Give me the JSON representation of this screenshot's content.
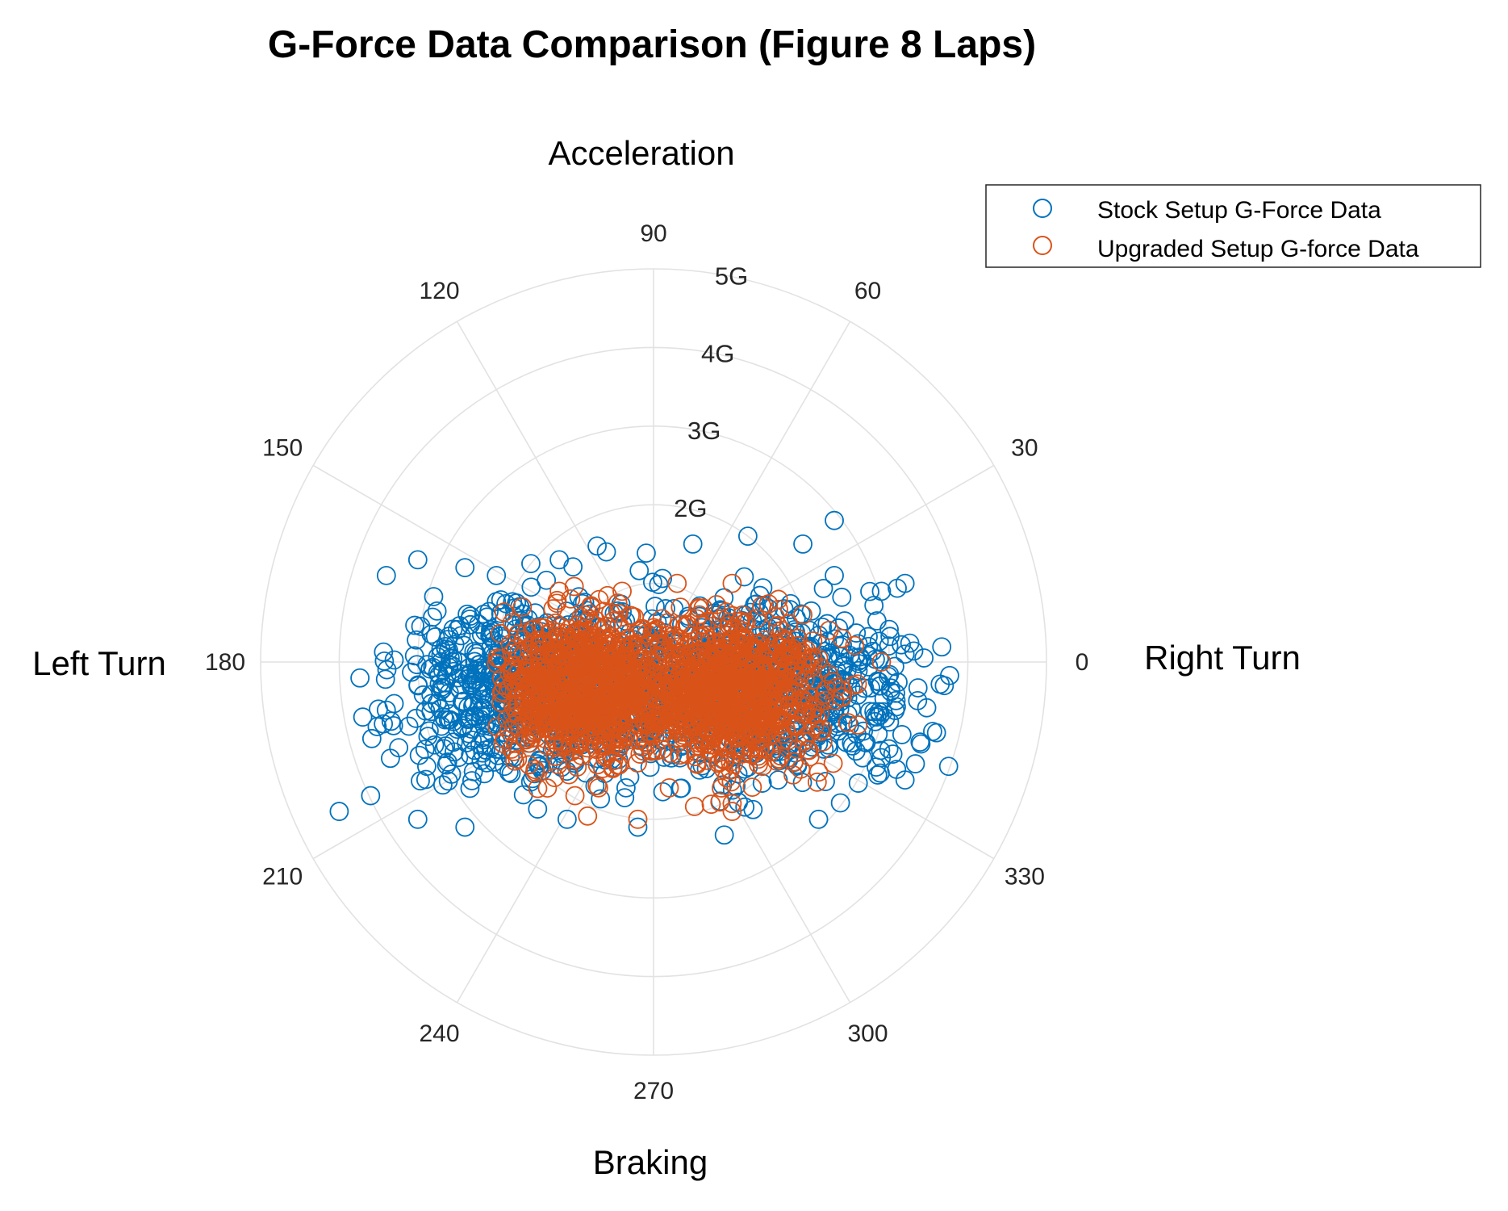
{
  "chart_data": {
    "type": "scatter",
    "coordinate_system": "polar",
    "title": "G-Force Data Comparison (Figure 8 Laps)",
    "direction_labels": {
      "top": "Acceleration",
      "bottom": "Braking",
      "left": "Left Turn",
      "right": "Right Turn"
    },
    "theta_ticks": [
      "0",
      "30",
      "60",
      "90",
      "120",
      "150",
      "180",
      "210",
      "240",
      "270",
      "300",
      "330"
    ],
    "theta_tick_values_deg": [
      0,
      30,
      60,
      90,
      120,
      150,
      180,
      210,
      240,
      270,
      300,
      330
    ],
    "r_ticks": [
      "2G",
      "3G",
      "4G",
      "5G"
    ],
    "r_tick_values": [
      2,
      3,
      4,
      5
    ],
    "rlim": [
      0,
      5
    ],
    "grid": true,
    "legend_position": "top-right",
    "marker": "open-circle",
    "series": [
      {
        "name": "Stock Setup G-Force Data",
        "color": "#0072BD",
        "cluster_description": "dense elongated cloud centered slightly below origin, spanning x about -3.8G to 3.8G, y about -2.1G to 1.5G",
        "representative_points_xy": [
          [
            -4.0,
            -1.9
          ],
          [
            -3.6,
            -1.7
          ],
          [
            -3.7,
            -0.7
          ],
          [
            -3.4,
            1.1
          ],
          [
            -3.0,
            1.3
          ],
          [
            -2.4,
            1.2
          ],
          [
            -2.0,
            1.1
          ],
          [
            -1.2,
            1.3
          ],
          [
            -0.6,
            1.4
          ],
          [
            0.5,
            1.5
          ],
          [
            1.2,
            1.6
          ],
          [
            1.9,
            1.5
          ],
          [
            2.3,
            1.1
          ],
          [
            2.9,
            0.9
          ],
          [
            3.2,
            0.1
          ],
          [
            3.7,
            -0.3
          ],
          [
            3.6,
            -0.9
          ],
          [
            3.2,
            -1.5
          ],
          [
            2.1,
            -2.0
          ],
          [
            0.9,
            -2.2
          ],
          [
            -0.2,
            -2.1
          ],
          [
            -1.1,
            -2.0
          ],
          [
            -2.4,
            -2.1
          ],
          [
            -3.0,
            -2.0
          ],
          [
            2.3,
            1.8
          ],
          [
            3.2,
            1.0
          ]
        ]
      },
      {
        "name": "Upgraded Setup G-force Data",
        "color": "#D95319",
        "cluster_description": "dense cloud centered slightly below origin, spanning x about -1.9G to 2.9G, y about -2.1G to 0.9G",
        "representative_points_xy": [
          [
            -1.9,
            -0.3
          ],
          [
            -1.8,
            0.5
          ],
          [
            -1.2,
            0.9
          ],
          [
            -0.4,
            0.9
          ],
          [
            0.3,
            1.0
          ],
          [
            1.0,
            1.0
          ],
          [
            1.9,
            0.6
          ],
          [
            2.4,
            0.3
          ],
          [
            2.9,
            0.0
          ],
          [
            2.6,
            -0.8
          ],
          [
            2.1,
            -1.4
          ],
          [
            1.0,
            -1.8
          ],
          [
            0.2,
            -1.6
          ],
          [
            -0.7,
            -1.6
          ],
          [
            -1.5,
            -1.4
          ],
          [
            -0.2,
            -2.0
          ],
          [
            1.0,
            -1.9
          ],
          [
            -1.0,
            -1.7
          ]
        ]
      }
    ]
  }
}
